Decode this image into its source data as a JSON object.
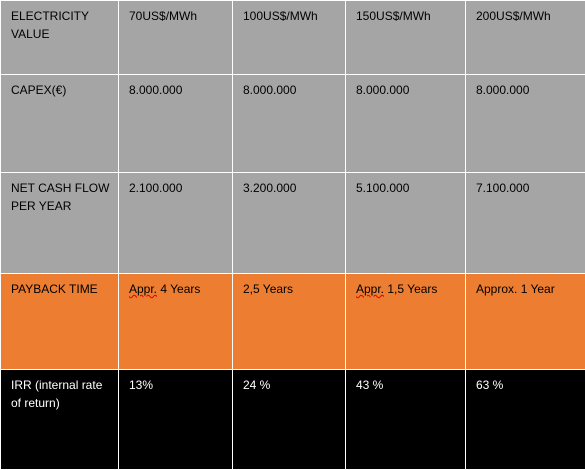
{
  "table": {
    "rows": [
      {
        "label": "ELECTRICITY VALUE",
        "cells": [
          "70US$/MWh",
          "100US$/MWh",
          "150US$/MWh",
          "200US$/MWh"
        ]
      },
      {
        "label": "CAPEX(€)",
        "cells": [
          "8.000.000",
          "8.000.000",
          "8.000.000",
          "8.000.000"
        ]
      },
      {
        "label": "NET CASH FLOW PER YEAR",
        "cells": [
          "2.100.000",
          "3.200.000",
          "5.100.000",
          "7.100.000"
        ]
      },
      {
        "label": "PAYBACK TIME",
        "cells_prefix": [
          "Appr.",
          "",
          "Appr.",
          ""
        ],
        "cells_rest": [
          " 4 Years",
          "2,5 Years",
          " 1,5 Years",
          "Approx. 1 Year"
        ]
      },
      {
        "label": "IRR (internal rate of return)",
        "cells": [
          "13%",
          "24 %",
          "43 %",
          "63 %"
        ]
      }
    ]
  },
  "colors": {
    "gray_rows": "#a5a5a5",
    "payback_row": "#ed7d31",
    "irr_row": "#000000",
    "grid_lines": "#ffffff",
    "spellcheck_underline": "#e00000"
  }
}
